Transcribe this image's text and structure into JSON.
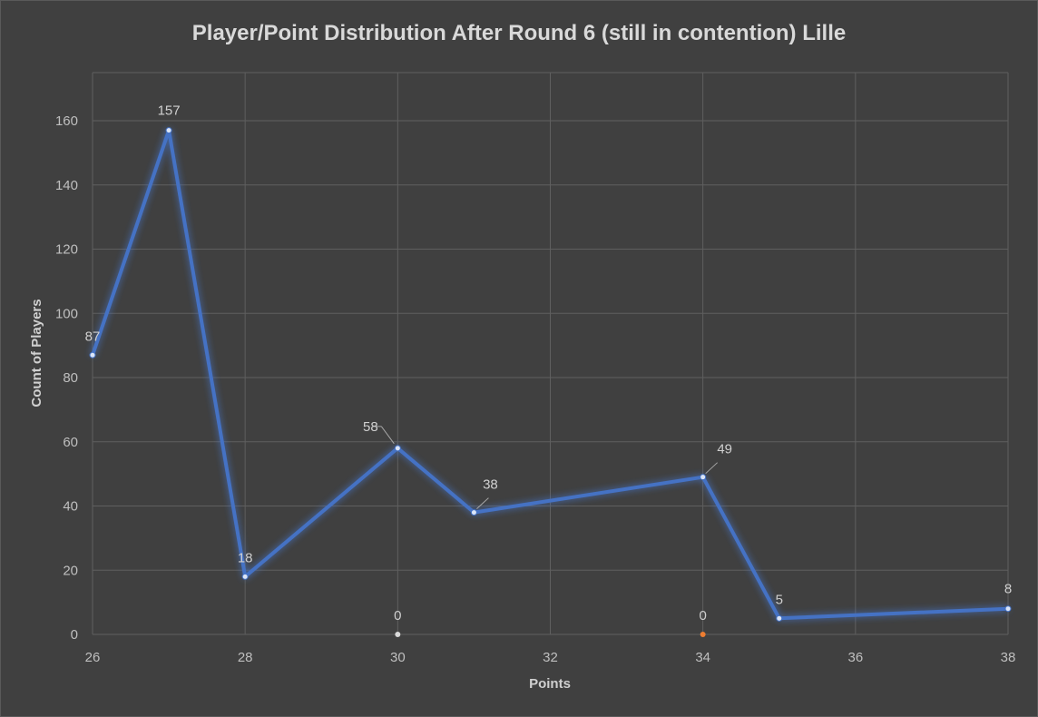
{
  "chart_data": {
    "type": "line",
    "title": "Player/Point Distribution After Round 6 (still in contention) Lille",
    "xlabel": "Points",
    "ylabel": "Count of Players",
    "xlim": [
      26,
      38
    ],
    "ylim": [
      0,
      175
    ],
    "x_ticks": [
      "26",
      "28",
      "30",
      "32",
      "34",
      "36",
      "38"
    ],
    "y_ticks": [
      "0",
      "20",
      "40",
      "60",
      "80",
      "100",
      "120",
      "140",
      "160"
    ],
    "grid": true,
    "legend": "none",
    "series": [
      {
        "color": "#4472c4",
        "x": [
          26,
          27,
          28,
          30,
          31,
          34,
          35,
          38
        ],
        "y": [
          87,
          157,
          18,
          58,
          38,
          49,
          5,
          8
        ],
        "labels": [
          "87",
          "157",
          "18",
          "58",
          "38",
          "49",
          "5",
          "8"
        ]
      }
    ],
    "reference_lines": [
      {
        "x": 30,
        "color": "#d9d9d9",
        "label": "0"
      },
      {
        "x": 34,
        "color": "#ed7d31",
        "label": "0"
      }
    ]
  }
}
